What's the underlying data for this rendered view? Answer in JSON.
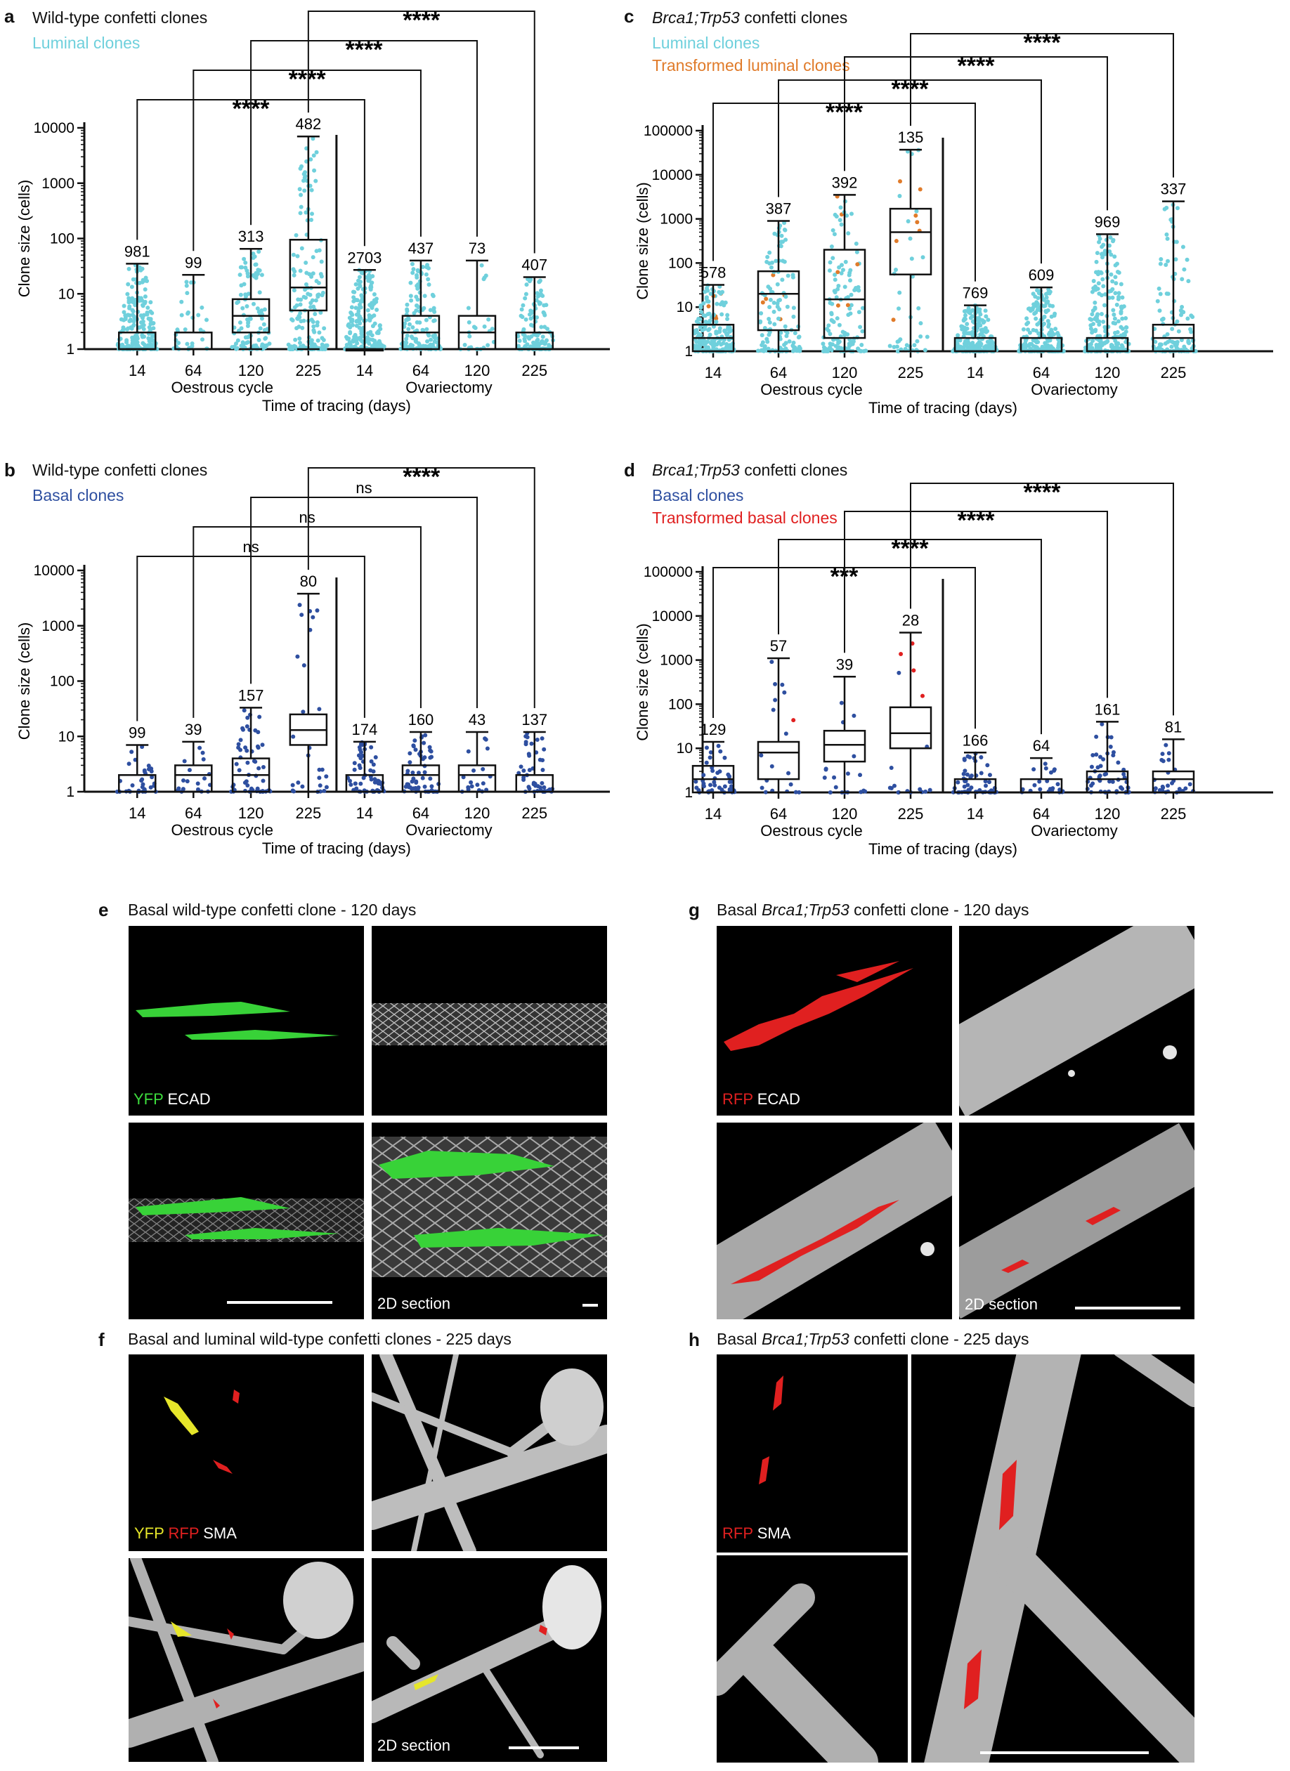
{
  "figure": {
    "panel_letters": {
      "a": "a",
      "b": "b",
      "c": "c",
      "d": "d",
      "e": "e",
      "f": "f",
      "g": "g",
      "h": "h"
    },
    "axis": {
      "ylabel": "Clone size (cells)",
      "xlabel": "Time of tracing  (days)",
      "group1": "Oestrous cycle",
      "group2": "Ovariectomy",
      "yticks_4": [
        "1",
        "10",
        "100",
        "1000",
        "10000"
      ],
      "yticks_5": [
        "1",
        "10",
        "100",
        "1000",
        "10000",
        "100000"
      ]
    },
    "colors": {
      "luminal": "#6fd0dc",
      "basal": "#2e4fa0",
      "transformed_luminal": "#e07b2a",
      "transformed_basal": "#e02020",
      "box": "#111111"
    },
    "panels": {
      "a": {
        "title": "Wild-type confetti clones",
        "legend": [
          {
            "label": "Luminal clones",
            "color": "#6fd0dc"
          }
        ]
      },
      "b": {
        "title": "Wild-type confetti clones",
        "legend": [
          {
            "label": "Basal clones",
            "color": "#2e4fa0"
          }
        ]
      },
      "c": {
        "title_italic": "Brca1;Trp53",
        "title_rest": " confetti clones",
        "legend": [
          {
            "label": "Luminal clones",
            "color": "#6fd0dc"
          },
          {
            "label": "Transformed luminal clones",
            "color": "#e07b2a"
          }
        ]
      },
      "d": {
        "title_italic": "Brca1;Trp53",
        "title_rest": " confetti clones",
        "legend": [
          {
            "label": "Basal clones",
            "color": "#2e4fa0"
          },
          {
            "label": "Transformed basal clones",
            "color": "#e02020"
          }
        ]
      },
      "e": {
        "title": "Basal wild-type confetti clone - 120 days",
        "channel_labels": [
          {
            "text": "YFP",
            "color": "#3ddc3d"
          },
          {
            "text": " ECAD",
            "color": "#ffffff"
          }
        ],
        "section_label": "2D section"
      },
      "f": {
        "title": "Basal and luminal wild-type confetti clones - 225 days",
        "channel_labels": [
          {
            "text": "YFP",
            "color": "#e6e62a"
          },
          {
            "text": " RFP",
            "color": "#e02020"
          },
          {
            "text": " SMA",
            "color": "#ffffff"
          }
        ],
        "section_label": "2D section"
      },
      "g": {
        "title_pre": "Basal ",
        "title_italic": "Brca1;Trp53",
        "title_rest": " confetti clone - 120 days",
        "channel_labels": [
          {
            "text": "RFP",
            "color": "#e02020"
          },
          {
            "text": " ECAD",
            "color": "#ffffff"
          }
        ],
        "section_label": "2D section"
      },
      "h": {
        "title_pre": "Basal ",
        "title_italic": "Brca1;Trp53",
        "title_rest": " confetti clone - 225 days",
        "channel_labels": [
          {
            "text": "RFP",
            "color": "#e02020"
          },
          {
            "text": " SMA",
            "color": "#ffffff"
          }
        ]
      }
    }
  },
  "chart_data": [
    {
      "id": "a",
      "type": "box",
      "title": "Wild-type confetti clones",
      "ylabel": "Clone size (cells)",
      "xlabel": "Time of tracing  (days)",
      "yscale": "log",
      "ylim": [
        1,
        10000
      ],
      "categories": [
        "14",
        "64",
        "120",
        "225",
        "14",
        "64",
        "120",
        "225"
      ],
      "groups": [
        "Oestrous cycle",
        "Ovariectomy"
      ],
      "n": [
        "981",
        "99",
        "313",
        "482",
        "2703",
        "437",
        "73",
        "407"
      ],
      "boxes": [
        {
          "min": 1,
          "q1": 1,
          "median": 1,
          "q3": 2,
          "max": 35
        },
        {
          "min": 1,
          "q1": 1,
          "median": 1,
          "q3": 2,
          "max": 22
        },
        {
          "min": 1,
          "q1": 2,
          "median": 4,
          "q3": 8,
          "max": 65
        },
        {
          "min": 1,
          "q1": 5,
          "median": 13,
          "q3": 95,
          "max": 7000
        },
        {
          "min": 1,
          "q1": 1,
          "median": 1,
          "q3": 1,
          "max": 27
        },
        {
          "min": 1,
          "q1": 1,
          "median": 2,
          "q3": 4,
          "max": 40
        },
        {
          "min": 1,
          "q1": 1,
          "median": 2,
          "q3": 4,
          "max": 40
        },
        {
          "min": 1,
          "q1": 1,
          "median": 1,
          "q3": 2,
          "max": 20
        }
      ],
      "series": [
        {
          "name": "Luminal clones",
          "color": "#6fd0dc"
        }
      ],
      "significance": [
        {
          "from": "14",
          "to": "14",
          "label": "****"
        },
        {
          "from": "64",
          "to": "64",
          "label": "****"
        },
        {
          "from": "120",
          "to": "120",
          "label": "****"
        },
        {
          "from": "225",
          "to": "225",
          "label": "****"
        }
      ]
    },
    {
      "id": "b",
      "type": "box",
      "title": "Wild-type confetti clones",
      "ylabel": "Clone size (cells)",
      "xlabel": "Time of tracing  (days)",
      "yscale": "log",
      "ylim": [
        1,
        10000
      ],
      "categories": [
        "14",
        "64",
        "120",
        "225",
        "14",
        "64",
        "120",
        "225"
      ],
      "groups": [
        "Oestrous cycle",
        "Ovariectomy"
      ],
      "n": [
        "99",
        "39",
        "157",
        "80",
        "174",
        "160",
        "43",
        "137"
      ],
      "boxes": [
        {
          "min": 1,
          "q1": 1,
          "median": 2,
          "q3": 2,
          "max": 7
        },
        {
          "min": 1,
          "q1": 1,
          "median": 2,
          "q3": 3,
          "max": 8
        },
        {
          "min": 1,
          "q1": 1,
          "median": 2,
          "q3": 4,
          "max": 33
        },
        {
          "min": 1,
          "q1": 7,
          "median": 13,
          "q3": 25,
          "max": 3800
        },
        {
          "min": 1,
          "q1": 1,
          "median": 1,
          "q3": 2,
          "max": 8
        },
        {
          "min": 1,
          "q1": 1,
          "median": 2,
          "q3": 3,
          "max": 12
        },
        {
          "min": 1,
          "q1": 1,
          "median": 2,
          "q3": 3,
          "max": 12
        },
        {
          "min": 1,
          "q1": 1,
          "median": 2,
          "q3": 2,
          "max": 12
        }
      ],
      "series": [
        {
          "name": "Basal clones",
          "color": "#2e4fa0"
        }
      ],
      "significance": [
        {
          "from": "14",
          "to": "14",
          "label": "ns"
        },
        {
          "from": "64",
          "to": "64",
          "label": "ns"
        },
        {
          "from": "120",
          "to": "120",
          "label": "ns"
        },
        {
          "from": "225",
          "to": "225",
          "label": "****"
        }
      ]
    },
    {
      "id": "c",
      "type": "box",
      "title": "Brca1;Trp53 confetti clones",
      "ylabel": "Clone size (cells)",
      "xlabel": "Time of tracing  (days)",
      "yscale": "log",
      "ylim": [
        1,
        100000
      ],
      "categories": [
        "14",
        "64",
        "120",
        "225",
        "14",
        "64",
        "120",
        "225"
      ],
      "groups": [
        "Oestrous cycle",
        "Ovariectomy"
      ],
      "n": [
        "578",
        "387",
        "392",
        "135",
        "769",
        "609",
        "969",
        "337"
      ],
      "boxes": [
        {
          "min": 1,
          "q1": 1,
          "median": 2,
          "q3": 4,
          "max": 32
        },
        {
          "min": 1,
          "q1": 3,
          "median": 20,
          "q3": 65,
          "max": 900
        },
        {
          "min": 1,
          "q1": 2,
          "median": 15,
          "q3": 200,
          "max": 3500
        },
        {
          "min": 1,
          "q1": 55,
          "median": 500,
          "q3": 1700,
          "max": 37000
        },
        {
          "min": 1,
          "q1": 1,
          "median": 1,
          "q3": 2,
          "max": 11
        },
        {
          "min": 1,
          "q1": 1,
          "median": 1,
          "q3": 2,
          "max": 28
        },
        {
          "min": 1,
          "q1": 1,
          "median": 1,
          "q3": 2,
          "max": 450
        },
        {
          "min": 1,
          "q1": 1,
          "median": 2,
          "q3": 4,
          "max": 2500
        }
      ],
      "series": [
        {
          "name": "Luminal clones",
          "color": "#6fd0dc"
        },
        {
          "name": "Transformed luminal clones",
          "color": "#e07b2a"
        }
      ],
      "significance": [
        {
          "from": "14",
          "to": "14",
          "label": "****"
        },
        {
          "from": "64",
          "to": "64",
          "label": "****"
        },
        {
          "from": "120",
          "to": "120",
          "label": "****"
        },
        {
          "from": "225",
          "to": "225",
          "label": "****"
        }
      ]
    },
    {
      "id": "d",
      "type": "box",
      "title": "Brca1;Trp53 confetti clones",
      "ylabel": "Clone size (cells)",
      "xlabel": "Time of tracing  (days)",
      "yscale": "log",
      "ylim": [
        1,
        100000
      ],
      "categories": [
        "14",
        "64",
        "120",
        "225",
        "14",
        "64",
        "120",
        "225"
      ],
      "groups": [
        "Oestrous cycle",
        "Ovariectomy"
      ],
      "n": [
        "129",
        "57",
        "39",
        "28",
        "166",
        "64",
        "161",
        "81"
      ],
      "boxes": [
        {
          "min": 1,
          "q1": 1,
          "median": 2,
          "q3": 4,
          "max": 14
        },
        {
          "min": 1,
          "q1": 2,
          "median": 8,
          "q3": 14,
          "max": 1100
        },
        {
          "min": 1,
          "q1": 5,
          "median": 12,
          "q3": 25,
          "max": 420
        },
        {
          "min": 1,
          "q1": 10,
          "median": 22,
          "q3": 85,
          "max": 4200
        },
        {
          "min": 1,
          "q1": 1,
          "median": 1,
          "q3": 2,
          "max": 8
        },
        {
          "min": 1,
          "q1": 1,
          "median": 1,
          "q3": 2,
          "max": 6
        },
        {
          "min": 1,
          "q1": 1,
          "median": 2,
          "q3": 3,
          "max": 40
        },
        {
          "min": 1,
          "q1": 1,
          "median": 2,
          "q3": 3,
          "max": 16
        }
      ],
      "series": [
        {
          "name": "Basal clones",
          "color": "#2e4fa0"
        },
        {
          "name": "Transformed basal clones",
          "color": "#e02020"
        }
      ],
      "significance": [
        {
          "from": "14",
          "to": "14",
          "label": "***"
        },
        {
          "from": "64",
          "to": "64",
          "label": "****"
        },
        {
          "from": "120",
          "to": "120",
          "label": "****"
        },
        {
          "from": "225",
          "to": "225",
          "label": "****"
        }
      ]
    }
  ]
}
